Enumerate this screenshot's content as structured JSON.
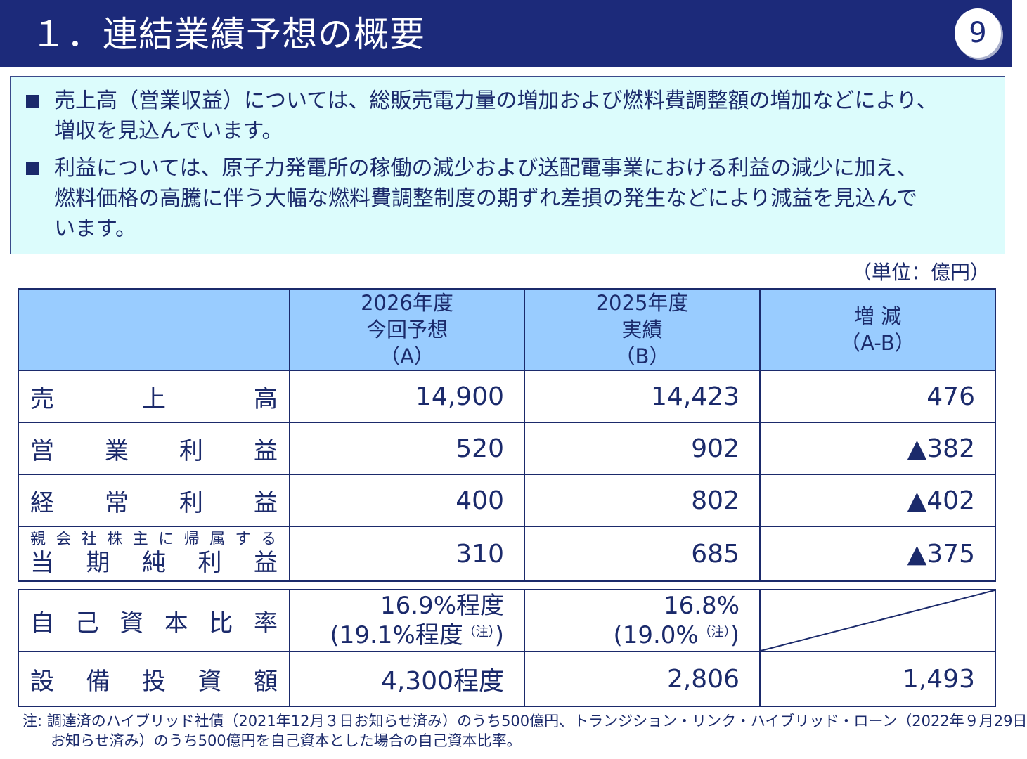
{
  "header": {
    "title": "１．連結業績予想の概要",
    "page_number": "9"
  },
  "summary": {
    "bullets": [
      {
        "line1": "売上高（営業収益）については、総販売電力量の増加および燃料費調整額の増加などにより、",
        "line2": "増収を見込んでいます。"
      },
      {
        "line1": "利益については、原子力発電所の稼働の減少および送配電事業における利益の減少に加え、",
        "line2": "燃料価格の高騰に伴う大幅な燃料費調整制度の期ずれ差損の発生などにより減益を見込んで",
        "line3": "います。"
      }
    ]
  },
  "unit_label": "（単位：億円）",
  "table": {
    "headers": [
      {
        "l1": "2026年度",
        "l2": "今回予想",
        "l3": "（A）"
      },
      {
        "l1": "2025年度",
        "l2": "実績",
        "l3": "（B）"
      },
      {
        "l1": "増 減",
        "l2": "（A-B）"
      }
    ],
    "rows": [
      {
        "label": "売上高",
        "a": "14,900",
        "b": "14,423",
        "diff": "476"
      },
      {
        "label": "営業利益",
        "a": "520",
        "b": "902",
        "diff": "▲382"
      },
      {
        "label": "経常利益",
        "a": "400",
        "b": "802",
        "diff": "▲402"
      },
      {
        "label_small": "親会社株主に帰属する",
        "label": "当期純利益",
        "a": "310",
        "b": "685",
        "diff": "▲375"
      }
    ]
  },
  "table2": {
    "equity": {
      "label": "自己資本比率",
      "a_l1": "16.9%程度",
      "a_l2": "(19.1%程度",
      "a_note": "（注）",
      "a_close": ")",
      "b_l1": "16.8%",
      "b_l2": "(19.0%",
      "b_note": "（注）",
      "b_close": ")"
    },
    "capex": {
      "label": "設備投資額",
      "a": "4,300程度",
      "b": "2,806",
      "diff": "1,493"
    }
  },
  "note": {
    "line1": "注: 調達済のハイブリッド社債（2021年12月３日お知らせ済み）のうち500億円、トランジション・リンク・ハイブリッド・ローン（2022年９月29日",
    "line2": "お知らせ済み）のうち500億円を自己資本とした場合の自己資本比率。"
  }
}
